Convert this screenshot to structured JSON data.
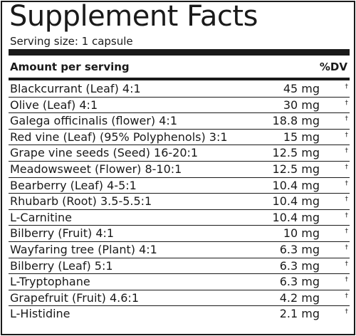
{
  "title": "Supplement Facts",
  "serving_size": "Serving size: 1 capsule",
  "header": {
    "amount_label": "Amount per serving",
    "dv_label": "%DV"
  },
  "rows": [
    {
      "name": "Blackcurrant (Leaf) 4:1",
      "amount": "45 mg",
      "dv": "†"
    },
    {
      "name": "Olive (Leaf)  4:1",
      "amount": "30 mg",
      "dv": "†"
    },
    {
      "name": "Galega officinalis (flower) 4:1",
      "amount": "18.8 mg",
      "dv": "†"
    },
    {
      "name": "Red vine (Leaf) (95% Polyphenols) 3:1",
      "amount": "15 mg",
      "dv": "†"
    },
    {
      "name": "Grape vine seeds (Seed) 16-20:1",
      "amount": "12.5 mg",
      "dv": "†"
    },
    {
      "name": "Meadowsweet (Flower) 8-10:1",
      "amount": "12.5 mg",
      "dv": "†"
    },
    {
      "name": "Bearberry (Leaf) 4-5:1",
      "amount": "10.4 mg",
      "dv": "†"
    },
    {
      "name": "Rhubarb (Root) 3.5-5.5:1",
      "amount": "10.4 mg",
      "dv": "†"
    },
    {
      "name": "L-Carnitine",
      "amount": "10.4 mg",
      "dv": "†"
    },
    {
      "name": "Bilberry (Fruit)  4:1",
      "amount": "10 mg",
      "dv": "†"
    },
    {
      "name": "Wayfaring tree (Plant) 4:1",
      "amount": "6.3 mg",
      "dv": "†"
    },
    {
      "name": "Bilberry (Leaf) 5:1",
      "amount": "6.3 mg",
      "dv": "†"
    },
    {
      "name": "L-Tryptophane",
      "amount": "6.3 mg",
      "dv": "†"
    },
    {
      "name": "Grapefruit (Fruit)  4.6:1",
      "amount": "4.2 mg",
      "dv": "†"
    },
    {
      "name": "L-Histidine",
      "amount": "2.1 mg",
      "dv": "†"
    }
  ]
}
